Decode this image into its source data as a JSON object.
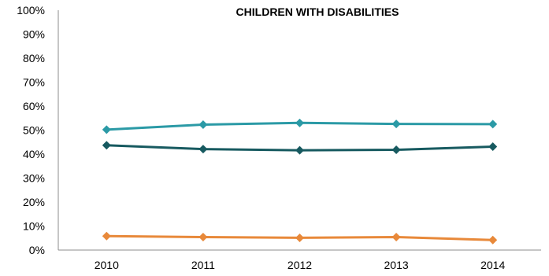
{
  "chart_data": {
    "type": "line",
    "title": "CHILDREN WITH DISABILITIES",
    "xlabel": "",
    "ylabel": "",
    "categories": [
      "2010",
      "2011",
      "2012",
      "2013",
      "2014"
    ],
    "ylim": [
      0,
      100
    ],
    "yticks": [
      "0%",
      "10%",
      "20%",
      "30%",
      "40%",
      "50%",
      "60%",
      "70%",
      "80%",
      "90%",
      "100%"
    ],
    "grid": false,
    "series": [
      {
        "color": "#2b9aa6",
        "marker": "diamond",
        "values": [
          50.2,
          52.3,
          53.0,
          52.6,
          52.5
        ]
      },
      {
        "color": "#175a60",
        "marker": "diamond",
        "values": [
          43.7,
          42.1,
          41.6,
          41.8,
          43.1
        ]
      },
      {
        "color": "#e8893a",
        "marker": "diamond",
        "values": [
          5.8,
          5.4,
          5.1,
          5.4,
          4.2
        ]
      }
    ]
  }
}
